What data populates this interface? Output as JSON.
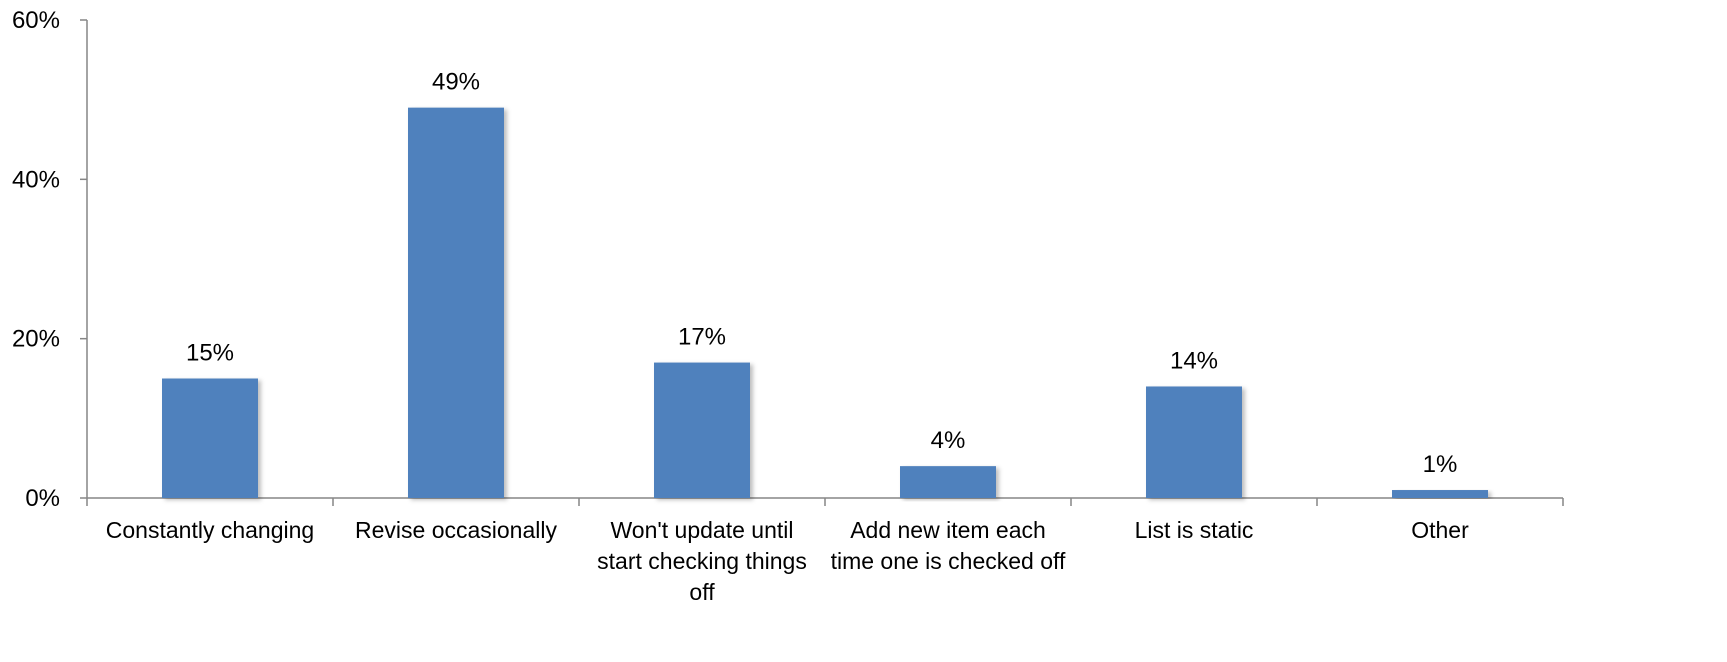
{
  "chart_data": {
    "type": "bar",
    "categories": [
      [
        "Constantly changing"
      ],
      [
        "Revise occasionally"
      ],
      [
        "Won't update until",
        "start checking things",
        "off"
      ],
      [
        "Add new item each",
        "time one is checked off"
      ],
      [
        "List is static"
      ],
      [
        "Other"
      ]
    ],
    "values": [
      15,
      49,
      17,
      4,
      14,
      1
    ],
    "data_labels": [
      "15%",
      "49%",
      "17%",
      "4%",
      "14%",
      "1%"
    ],
    "yticks": [
      0,
      20,
      40,
      60
    ],
    "ytick_labels": [
      "0%",
      "20%",
      "40%",
      "60%"
    ],
    "ylim": [
      0,
      60
    ],
    "grid": false,
    "legend": "none",
    "bar_color": "#4f81bd",
    "axis_color": "#868686"
  }
}
